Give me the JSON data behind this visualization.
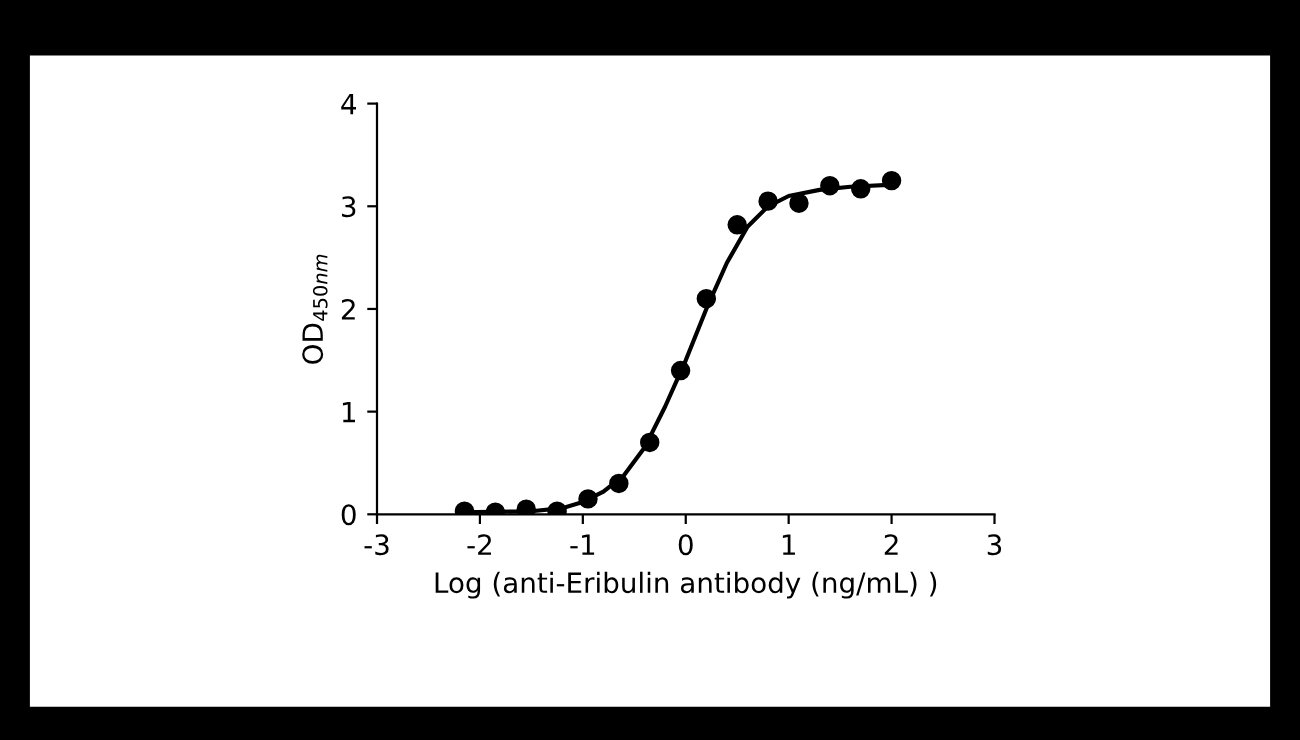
{
  "chart_data": {
    "type": "scatter",
    "xlabel": "Log (anti-Eribulin antibody (ng/mL) )",
    "ylabel": "OD$_{450nm}$",
    "xlim": [
      -3,
      3
    ],
    "xticks": [
      {
        "value": -3,
        "label": "-3"
      },
      {
        "value": -2,
        "label": "-2"
      },
      {
        "value": -1,
        "label": "-1"
      },
      0,
      1,
      2,
      3
    ],
    "ylim": [
      0,
      4
    ],
    "yticks": [
      0,
      1,
      2,
      3,
      4
    ],
    "grid": false,
    "legend": false,
    "series": [
      {
        "color": "#000000",
        "marker": "circle",
        "x": [
          -2.15,
          -1.85,
          -1.55,
          -1.25,
          -0.95,
          -0.65,
          -0.35,
          -0.05,
          0.2,
          0.5,
          0.8,
          1.1,
          1.4,
          1.7,
          2.0
        ],
        "values": [
          0.03,
          0.02,
          0.05,
          0.03,
          0.15,
          0.3,
          0.7,
          1.4,
          2.1,
          2.82,
          3.05,
          3.03,
          3.2,
          3.17,
          3.25
        ]
      },
      {
        "type": "line",
        "color": "#000000",
        "line_style": "solid",
        "x": [
          -2.2,
          -1.5,
          -1.2,
          -1.0,
          -0.8,
          -0.6,
          -0.4,
          -0.2,
          0.0,
          0.2,
          0.4,
          0.6,
          0.8,
          1.0,
          1.3,
          1.6,
          2.0
        ],
        "values": [
          0.02,
          0.03,
          0.06,
          0.12,
          0.22,
          0.38,
          0.65,
          1.05,
          1.5,
          2.0,
          2.45,
          2.8,
          3.0,
          3.1,
          3.16,
          3.19,
          3.21
        ]
      }
    ]
  }
}
